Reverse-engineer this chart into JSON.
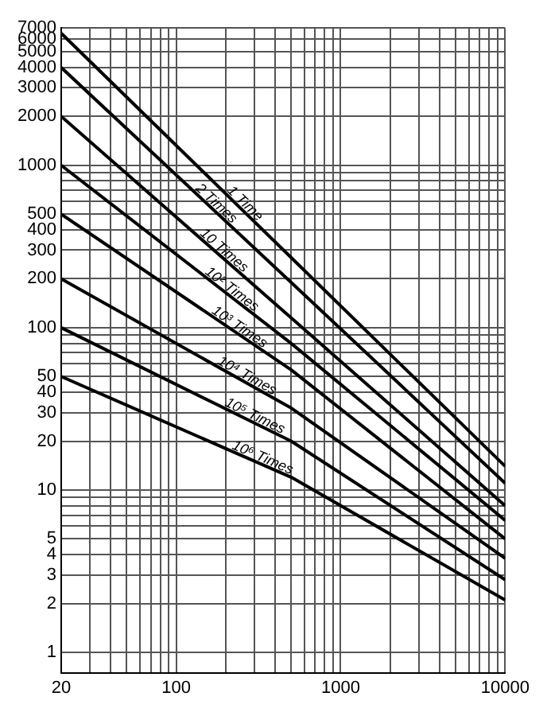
{
  "chart_data": {
    "type": "line",
    "log": "xy",
    "grid": true,
    "legend": false,
    "marker": "none",
    "line_style": "solid",
    "xlim": [
      20,
      10000
    ],
    "ylim": [
      0.75,
      7000
    ],
    "xticks": [
      20,
      {
        "value": 30,
        "label": null
      },
      {
        "value": 40,
        "label": null
      },
      {
        "value": 50,
        "label": null
      },
      {
        "value": 60,
        "label": null
      },
      {
        "value": 70,
        "label": null
      },
      {
        "value": 80,
        "label": null
      },
      {
        "value": 90,
        "label": null
      },
      100,
      {
        "value": 200,
        "label": null
      },
      {
        "value": 300,
        "label": null
      },
      {
        "value": 400,
        "label": null
      },
      {
        "value": 500,
        "label": null
      },
      {
        "value": 600,
        "label": null
      },
      {
        "value": 700,
        "label": null
      },
      {
        "value": 800,
        "label": null
      },
      {
        "value": 900,
        "label": null
      },
      1000,
      {
        "value": 2000,
        "label": null
      },
      {
        "value": 3000,
        "label": null
      },
      {
        "value": 4000,
        "label": null
      },
      {
        "value": 5000,
        "label": null
      },
      {
        "value": 6000,
        "label": null
      },
      {
        "value": 7000,
        "label": null
      },
      {
        "value": 8000,
        "label": null
      },
      {
        "value": 9000,
        "label": null
      },
      10000
    ],
    "yticks": [
      1,
      2,
      3,
      4,
      5,
      {
        "value": 6,
        "label": null
      },
      {
        "value": 7,
        "label": null
      },
      {
        "value": 8,
        "label": null
      },
      {
        "value": 9,
        "label": null
      },
      10,
      20,
      30,
      40,
      50,
      {
        "value": 60,
        "label": null
      },
      {
        "value": 70,
        "label": null
      },
      {
        "value": 80,
        "label": null
      },
      {
        "value": 90,
        "label": null
      },
      100,
      200,
      300,
      400,
      500,
      {
        "value": 600,
        "label": null
      },
      {
        "value": 700,
        "label": null
      },
      {
        "value": 800,
        "label": null
      },
      {
        "value": 900,
        "label": null
      },
      1000,
      2000,
      3000,
      4000,
      5000,
      6000,
      7000
    ],
    "x": [
      20,
      500,
      10000
    ],
    "series": [
      {
        "name": "1 Time",
        "color": "#000000",
        "values": [
          6500,
          270,
          14
        ]
      },
      {
        "name": "2 Times",
        "color": "#000000",
        "values": [
          4000,
          190,
          11
        ]
      },
      {
        "name": "10 Times",
        "color": "#000000",
        "values": [
          2000,
          115,
          8
        ]
      },
      {
        "name": "10² Times",
        "color": "#000000",
        "values": [
          1000,
          80,
          6.5
        ]
      },
      {
        "name": "10³ Times",
        "color": "#000000",
        "values": [
          500,
          55,
          5
        ]
      },
      {
        "name": "10⁴ Times",
        "color": "#000000",
        "values": [
          200,
          32,
          3.8
        ]
      },
      {
        "name": "10⁵ Times",
        "color": "#000000",
        "values": [
          100,
          20,
          2.8
        ]
      },
      {
        "name": "10⁶ Times",
        "color": "#000000",
        "values": [
          50,
          12,
          2.1
        ]
      }
    ]
  }
}
